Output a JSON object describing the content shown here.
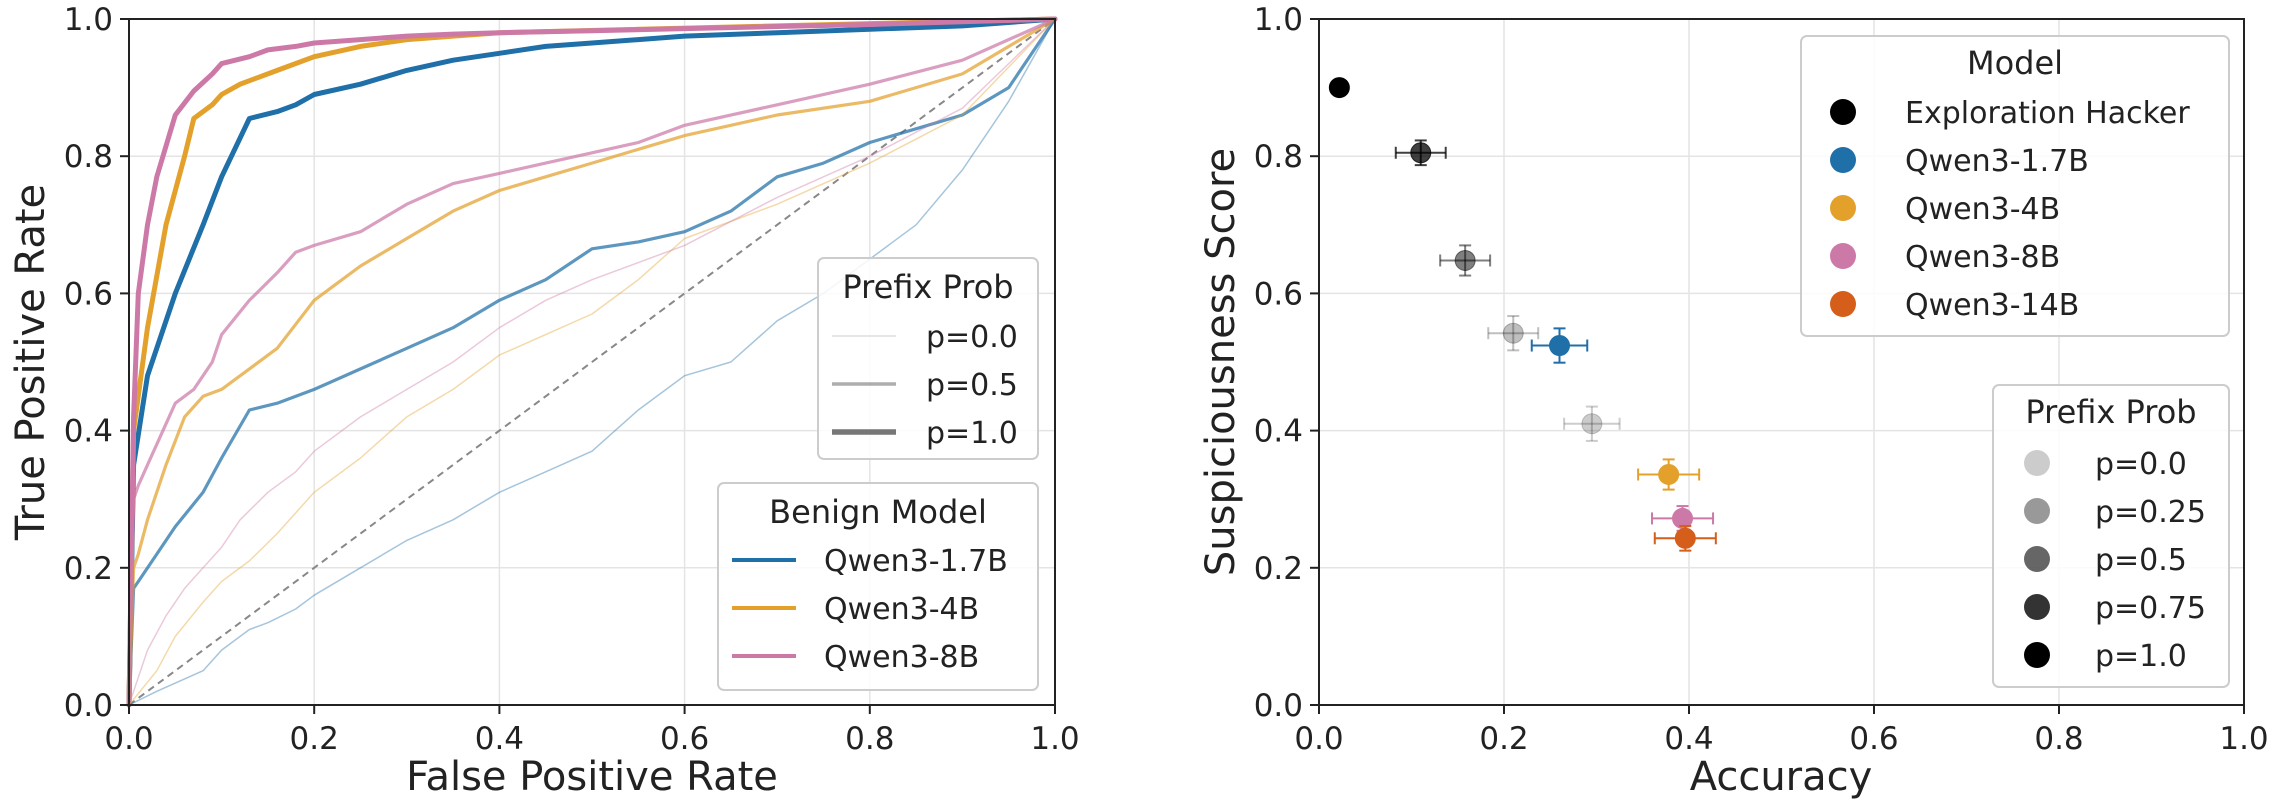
{
  "chart_data": [
    {
      "type": "line",
      "xlabel": "False Positive Rate",
      "ylabel": "True Positive Rate",
      "xlim": [
        0,
        1
      ],
      "ylim": [
        0,
        1
      ],
      "xticks": [
        "0.0",
        "0.2",
        "0.4",
        "0.6",
        "0.8",
        "1.0"
      ],
      "yticks": [
        "0.0",
        "0.2",
        "0.4",
        "0.6",
        "0.8",
        "1.0"
      ],
      "grid": true,
      "diagonal_reference": true,
      "legend_prefix": {
        "title": "Prefix Prob",
        "placement": "center-right",
        "entries": [
          {
            "label": "p=0.0",
            "prefix_prob": 0.0
          },
          {
            "label": "p=0.5",
            "prefix_prob": 0.5
          },
          {
            "label": "p=1.0",
            "prefix_prob": 1.0
          }
        ]
      },
      "legend_model": {
        "title": "Benign Model",
        "placement": "lower-right",
        "entries": [
          {
            "label": "Qwen3-1.7B",
            "color": "#1f6fa8"
          },
          {
            "label": "Qwen3-4B",
            "color": "#e3a02b"
          },
          {
            "label": "Qwen3-8B",
            "color": "#cc79a7"
          }
        ]
      },
      "series": [
        {
          "model": "Qwen3-1.7B",
          "prefix_prob": 1.0,
          "color": "#1f6fa8",
          "x": [
            0,
            0.005,
            0.02,
            0.05,
            0.08,
            0.1,
            0.13,
            0.16,
            0.18,
            0.2,
            0.25,
            0.3,
            0.35,
            0.4,
            0.45,
            0.5,
            0.55,
            0.6,
            0.7,
            0.8,
            0.9,
            1.0
          ],
          "y": [
            0,
            0.35,
            0.48,
            0.6,
            0.7,
            0.77,
            0.855,
            0.865,
            0.875,
            0.89,
            0.905,
            0.925,
            0.94,
            0.95,
            0.96,
            0.965,
            0.97,
            0.975,
            0.98,
            0.985,
            0.99,
            1.0
          ]
        },
        {
          "model": "Qwen3-4B",
          "prefix_prob": 1.0,
          "color": "#e3a02b",
          "x": [
            0,
            0.005,
            0.02,
            0.04,
            0.06,
            0.07,
            0.09,
            0.1,
            0.12,
            0.14,
            0.16,
            0.2,
            0.25,
            0.3,
            0.35,
            0.4,
            1.0
          ],
          "y": [
            0,
            0.4,
            0.55,
            0.7,
            0.8,
            0.855,
            0.875,
            0.89,
            0.905,
            0.915,
            0.925,
            0.945,
            0.96,
            0.97,
            0.975,
            0.98,
            1.0
          ]
        },
        {
          "model": "Qwen3-8B",
          "prefix_prob": 1.0,
          "color": "#cc79a7",
          "x": [
            0,
            0.005,
            0.01,
            0.02,
            0.03,
            0.05,
            0.07,
            0.09,
            0.1,
            0.13,
            0.15,
            0.18,
            0.2,
            0.25,
            0.3,
            0.35,
            0.4,
            0.5,
            0.6,
            0.7,
            0.8,
            0.9,
            1.0
          ],
          "y": [
            0,
            0.42,
            0.6,
            0.7,
            0.77,
            0.86,
            0.895,
            0.92,
            0.935,
            0.945,
            0.955,
            0.96,
            0.965,
            0.97,
            0.975,
            0.978,
            0.98,
            0.983,
            0.986,
            0.989,
            0.992,
            0.996,
            1.0
          ]
        },
        {
          "model": "Qwen3-1.7B",
          "prefix_prob": 0.5,
          "color": "#1f6fa8",
          "x": [
            0,
            0.005,
            0.01,
            0.03,
            0.05,
            0.08,
            0.1,
            0.13,
            0.16,
            0.2,
            0.25,
            0.3,
            0.35,
            0.4,
            0.45,
            0.5,
            0.55,
            0.6,
            0.65,
            0.7,
            0.75,
            0.8,
            0.9,
            0.95,
            1.0
          ],
          "y": [
            0,
            0.17,
            0.18,
            0.22,
            0.26,
            0.31,
            0.36,
            0.43,
            0.44,
            0.46,
            0.49,
            0.52,
            0.55,
            0.59,
            0.62,
            0.665,
            0.675,
            0.69,
            0.72,
            0.77,
            0.79,
            0.82,
            0.86,
            0.9,
            1.0
          ]
        },
        {
          "model": "Qwen3-4B",
          "prefix_prob": 0.5,
          "color": "#e3a02b",
          "x": [
            0,
            0.005,
            0.01,
            0.02,
            0.04,
            0.06,
            0.08,
            0.1,
            0.13,
            0.16,
            0.2,
            0.25,
            0.3,
            0.35,
            0.4,
            0.45,
            0.5,
            0.55,
            0.6,
            0.7,
            0.8,
            0.9,
            1.0
          ],
          "y": [
            0,
            0.2,
            0.22,
            0.27,
            0.35,
            0.42,
            0.45,
            0.46,
            0.49,
            0.52,
            0.59,
            0.64,
            0.68,
            0.72,
            0.75,
            0.77,
            0.79,
            0.81,
            0.83,
            0.86,
            0.88,
            0.92,
            1.0
          ]
        },
        {
          "model": "Qwen3-8B",
          "prefix_prob": 0.5,
          "color": "#cc79a7",
          "x": [
            0,
            0.005,
            0.01,
            0.02,
            0.03,
            0.05,
            0.07,
            0.09,
            0.1,
            0.13,
            0.16,
            0.18,
            0.2,
            0.25,
            0.3,
            0.35,
            0.4,
            0.45,
            0.5,
            0.55,
            0.6,
            0.7,
            0.8,
            0.9,
            1.0
          ],
          "y": [
            0,
            0.3,
            0.32,
            0.35,
            0.38,
            0.44,
            0.46,
            0.5,
            0.54,
            0.59,
            0.63,
            0.66,
            0.67,
            0.69,
            0.73,
            0.76,
            0.775,
            0.79,
            0.805,
            0.82,
            0.845,
            0.875,
            0.905,
            0.94,
            1.0
          ]
        },
        {
          "model": "Qwen3-1.7B",
          "prefix_prob": 0.0,
          "color": "#1f6fa8",
          "x": [
            0,
            0.03,
            0.08,
            0.1,
            0.13,
            0.15,
            0.18,
            0.2,
            0.25,
            0.3,
            0.35,
            0.4,
            0.45,
            0.5,
            0.55,
            0.6,
            0.65,
            0.7,
            0.75,
            0.8,
            0.85,
            0.9,
            0.95,
            1.0
          ],
          "y": [
            0,
            0.02,
            0.05,
            0.08,
            0.11,
            0.12,
            0.14,
            0.16,
            0.2,
            0.24,
            0.27,
            0.31,
            0.34,
            0.37,
            0.43,
            0.48,
            0.5,
            0.56,
            0.6,
            0.65,
            0.7,
            0.78,
            0.88,
            1.0
          ]
        },
        {
          "model": "Qwen3-4B",
          "prefix_prob": 0.0,
          "color": "#e3a02b",
          "x": [
            0,
            0.03,
            0.05,
            0.08,
            0.1,
            0.13,
            0.16,
            0.2,
            0.25,
            0.3,
            0.35,
            0.4,
            0.45,
            0.5,
            0.55,
            0.6,
            0.7,
            0.8,
            0.9,
            1.0
          ],
          "y": [
            0,
            0.05,
            0.1,
            0.15,
            0.18,
            0.21,
            0.25,
            0.31,
            0.36,
            0.42,
            0.46,
            0.51,
            0.54,
            0.57,
            0.62,
            0.68,
            0.73,
            0.79,
            0.86,
            1.0
          ]
        },
        {
          "model": "Qwen3-8B",
          "prefix_prob": 0.0,
          "color": "#cc79a7",
          "x": [
            0,
            0.02,
            0.04,
            0.06,
            0.08,
            0.1,
            0.12,
            0.15,
            0.18,
            0.2,
            0.25,
            0.3,
            0.35,
            0.4,
            0.45,
            0.5,
            0.6,
            0.7,
            0.8,
            0.9,
            1.0
          ],
          "y": [
            0,
            0.08,
            0.13,
            0.17,
            0.2,
            0.23,
            0.27,
            0.31,
            0.34,
            0.37,
            0.42,
            0.46,
            0.5,
            0.55,
            0.59,
            0.62,
            0.67,
            0.74,
            0.8,
            0.87,
            1.0
          ]
        }
      ]
    },
    {
      "type": "scatter",
      "xlabel": "Accuracy",
      "ylabel": "Suspiciousness Score",
      "xlim": [
        0,
        1
      ],
      "ylim": [
        0,
        1
      ],
      "xticks": [
        "0.0",
        "0.2",
        "0.4",
        "0.6",
        "0.8",
        "1.0"
      ],
      "yticks": [
        "0.0",
        "0.2",
        "0.4",
        "0.6",
        "0.8",
        "1.0"
      ],
      "grid": true,
      "legend_model": {
        "title": "Model",
        "placement": "upper-right",
        "entries": [
          {
            "label": "Exploration Hacker",
            "color": "#000000"
          },
          {
            "label": "Qwen3-1.7B",
            "color": "#1f6fa8"
          },
          {
            "label": "Qwen3-4B",
            "color": "#e3a02b"
          },
          {
            "label": "Qwen3-8B",
            "color": "#cc79a7"
          },
          {
            "label": "Qwen3-14B",
            "color": "#d55e1a"
          }
        ]
      },
      "legend_prefix": {
        "title": "Prefix Prob",
        "placement": "lower-right",
        "entries": [
          {
            "label": "p=0.0",
            "prefix_prob": 0.0
          },
          {
            "label": "p=0.25",
            "prefix_prob": 0.25
          },
          {
            "label": "p=0.5",
            "prefix_prob": 0.5
          },
          {
            "label": "p=0.75",
            "prefix_prob": 0.75
          },
          {
            "label": "p=1.0",
            "prefix_prob": 1.0
          }
        ]
      },
      "points": [
        {
          "model": "Exploration Hacker",
          "prefix_prob": 1.0,
          "color": "#000000",
          "x": 0.022,
          "y": 0.9,
          "xerr": 0.008,
          "yerr": 0.01
        },
        {
          "model": "Exploration Hacker",
          "prefix_prob": 0.75,
          "color": "#000000",
          "x": 0.11,
          "y": 0.805,
          "xerr": 0.027,
          "yerr": 0.018
        },
        {
          "model": "Exploration Hacker",
          "prefix_prob": 0.5,
          "color": "#000000",
          "x": 0.158,
          "y": 0.648,
          "xerr": 0.027,
          "yerr": 0.022
        },
        {
          "model": "Exploration Hacker",
          "prefix_prob": 0.25,
          "color": "#000000",
          "x": 0.21,
          "y": 0.542,
          "xerr": 0.027,
          "yerr": 0.025
        },
        {
          "model": "Qwen3-1.7B",
          "prefix_prob": 1.0,
          "color": "#1f6fa8",
          "x": 0.26,
          "y": 0.524,
          "xerr": 0.03,
          "yerr": 0.025
        },
        {
          "model": "Exploration Hacker",
          "prefix_prob": 0.0,
          "color": "#000000",
          "x": 0.295,
          "y": 0.41,
          "xerr": 0.03,
          "yerr": 0.025
        },
        {
          "model": "Qwen3-4B",
          "prefix_prob": 1.0,
          "color": "#e3a02b",
          "x": 0.378,
          "y": 0.336,
          "xerr": 0.033,
          "yerr": 0.022
        },
        {
          "model": "Qwen3-8B",
          "prefix_prob": 1.0,
          "color": "#cc79a7",
          "x": 0.393,
          "y": 0.272,
          "xerr": 0.033,
          "yerr": 0.018
        },
        {
          "model": "Qwen3-14B",
          "prefix_prob": 1.0,
          "color": "#d55e1a",
          "x": 0.396,
          "y": 0.243,
          "xerr": 0.033,
          "yerr": 0.018
        }
      ]
    }
  ]
}
